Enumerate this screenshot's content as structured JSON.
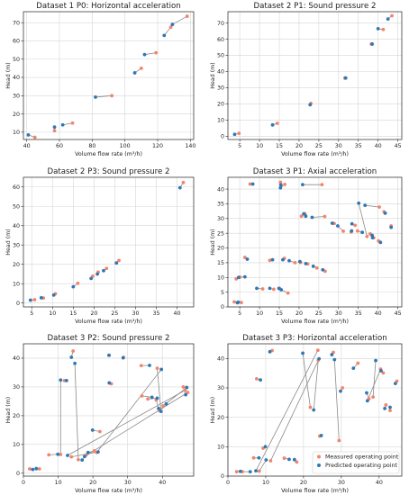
{
  "figure": {
    "colors": {
      "measured": "#f2856b",
      "predicted": "#2f78b4",
      "connector": "#8a8a8a",
      "grid": "#d6d6d6",
      "axis": "#222222"
    },
    "legend": {
      "placement": "bottom-right",
      "panel": 5,
      "items": [
        "Measured operating point",
        "Predicted operating point"
      ]
    }
  },
  "chart_data": [
    {
      "type": "scatter",
      "title": "Dataset 1 P0: Horizontal acceleration",
      "xlabel": "Volume flow rate (m³/h)",
      "ylabel": "Head (m)",
      "xlim": [
        38,
        142
      ],
      "ylim": [
        6,
        76
      ],
      "xticks": [
        40,
        60,
        80,
        100,
        120,
        140
      ],
      "yticks": [
        10,
        20,
        30,
        40,
        50,
        60,
        70
      ],
      "grid": true,
      "series": [
        {
          "name": "Measured operating point",
          "points": [
            [
              45,
              7.2
            ],
            [
              57,
              10.8
            ],
            [
              68,
              15
            ],
            [
              92,
              30
            ],
            [
              110,
              45
            ],
            [
              119,
              53.5
            ],
            [
              128,
              67.5
            ],
            [
              138,
              73.5
            ]
          ]
        },
        {
          "name": "Predicted operating point",
          "points": [
            [
              41,
              8.5
            ],
            [
              57,
              12.8
            ],
            [
              62,
              14
            ],
            [
              82,
              29.2
            ],
            [
              106,
              42.5
            ],
            [
              112,
              52.5
            ],
            [
              124,
              63
            ],
            [
              129,
              69
            ]
          ]
        }
      ]
    },
    {
      "type": "scatter",
      "title": "Dataset 2 P1: Sound pressure 2",
      "xlabel": "Volume flow rate (m³/h)",
      "ylabel": "Head (m)",
      "xlim": [
        2,
        46
      ],
      "ylim": [
        -2,
        77
      ],
      "xticks": [
        5,
        10,
        15,
        20,
        25,
        30,
        35,
        40,
        45
      ],
      "yticks": [
        0,
        10,
        20,
        30,
        40,
        50,
        60,
        70
      ],
      "grid": true,
      "series": [
        {
          "name": "Measured operating point",
          "points": [
            [
              4.8,
              1.8
            ],
            [
              14.5,
              8
            ],
            [
              23,
              20.3
            ],
            [
              31.6,
              36
            ],
            [
              38.3,
              57
            ],
            [
              41.3,
              66
            ],
            [
              43.5,
              74.5
            ]
          ]
        },
        {
          "name": "Predicted operating point",
          "points": [
            [
              3.7,
              1.2
            ],
            [
              13.3,
              7
            ],
            [
              22.8,
              19.5
            ],
            [
              31.8,
              36
            ],
            [
              38.5,
              57
            ],
            [
              40,
              66.5
            ],
            [
              42.5,
              72.5
            ]
          ]
        }
      ]
    },
    {
      "type": "scatter",
      "title": "Dataset 2 P3: Sound pressure 2",
      "xlabel": "Volume flow rate (m³/h)",
      "ylabel": "Head (m)",
      "xlim": [
        3,
        44
      ],
      "ylim": [
        -2,
        65
      ],
      "xticks": [
        5,
        10,
        15,
        20,
        25,
        30,
        35,
        40
      ],
      "yticks": [
        0,
        10,
        20,
        30,
        40,
        50,
        60
      ],
      "grid": true,
      "series": [
        {
          "name": "Measured operating point",
          "points": [
            [
              5.7,
              1.7
            ],
            [
              7.8,
              2.6
            ],
            [
              10.7,
              4.8
            ],
            [
              16.1,
              10.2
            ],
            [
              19.7,
              13.9
            ],
            [
              21,
              16
            ],
            [
              23,
              17.9
            ],
            [
              26,
              22
            ],
            [
              41.5,
              62.3
            ]
          ]
        },
        {
          "name": "Predicted operating point",
          "points": [
            [
              4.7,
              1.5
            ],
            [
              7.3,
              2.7
            ],
            [
              10.3,
              4.1
            ],
            [
              15,
              8.4
            ],
            [
              19.3,
              12.7
            ],
            [
              20.8,
              15
            ],
            [
              22.3,
              16.7
            ],
            [
              25.4,
              20.7
            ],
            [
              40.7,
              59.6
            ]
          ]
        }
      ]
    },
    {
      "type": "scatter",
      "title": "Dataset 3 P1: Axial acceleration",
      "xlabel": "Volume flow rate (m³/h)",
      "ylabel": "Head (m)",
      "xlim": [
        2,
        46
      ],
      "ylim": [
        0,
        44
      ],
      "xticks": [
        5,
        10,
        15,
        20,
        25,
        30,
        35,
        40,
        45
      ],
      "yticks": [
        0,
        5,
        10,
        15,
        20,
        25,
        30,
        35,
        40
      ],
      "grid": true,
      "series": [
        {
          "name": "Measured operating point",
          "points": [
            [
              3.6,
              1.7
            ],
            [
              5.4,
              1.5
            ],
            [
              4.1,
              9.5
            ],
            [
              5,
              10.1
            ],
            [
              6.3,
              16.8
            ],
            [
              7.6,
              41.7
            ],
            [
              15.3,
              42.3
            ],
            [
              15.1,
              6.2
            ],
            [
              17.2,
              4.7
            ],
            [
              13.6,
              6
            ],
            [
              12.6,
              15.8
            ],
            [
              16.3,
              16.5
            ],
            [
              19,
              15
            ],
            [
              20.4,
              15.1
            ],
            [
              22.2,
              14.6
            ],
            [
              24.5,
              13.2
            ],
            [
              26.6,
              12.1
            ],
            [
              20.6,
              30.8
            ],
            [
              25.8,
              41.5
            ],
            [
              26.5,
              30.7
            ],
            [
              28.9,
              28.3
            ],
            [
              31.2,
              25.7
            ],
            [
              33.2,
              25.4
            ],
            [
              34.2,
              27.7
            ],
            [
              37.2,
              23.9
            ],
            [
              38,
              24.8
            ],
            [
              38.9,
              23.5
            ],
            [
              40.3,
              33.9
            ],
            [
              41.5,
              32.3
            ],
            [
              43.3,
              27.5
            ],
            [
              10.8,
              6.1
            ],
            [
              16.4,
              41.6
            ],
            [
              21.5,
              31.6
            ],
            [
              34.8,
              25.8
            ],
            [
              40.1,
              22.4
            ]
          ]
        },
        {
          "name": "Predicted operating point",
          "points": [
            [
              4.6,
              1.6
            ],
            [
              4.4,
              1.4
            ],
            [
              4.7,
              10
            ],
            [
              6.3,
              10.2
            ],
            [
              6.9,
              16.2
            ],
            [
              8.3,
              41.7
            ],
            [
              15.4,
              41.4
            ],
            [
              14.9,
              6.3
            ],
            [
              15.5,
              5.8
            ],
            [
              12.6,
              6.3
            ],
            [
              13.3,
              16
            ],
            [
              15.9,
              16
            ],
            [
              17.5,
              15.7
            ],
            [
              20.2,
              15.4
            ],
            [
              21.7,
              14.7
            ],
            [
              23.6,
              13.8
            ],
            [
              26,
              12.6
            ],
            [
              21.2,
              31.6
            ],
            [
              20.9,
              41.5
            ],
            [
              23.3,
              30.4
            ],
            [
              28.4,
              28.4
            ],
            [
              29.8,
              27.5
            ],
            [
              33.3,
              25.8
            ],
            [
              33.4,
              28.2
            ],
            [
              35.1,
              35.2
            ],
            [
              38.6,
              23.5
            ],
            [
              38.5,
              24.3
            ],
            [
              36.7,
              34.5
            ],
            [
              41.8,
              31.8
            ],
            [
              43.3,
              27
            ],
            [
              9.3,
              6.3
            ],
            [
              15.3,
              40.4
            ],
            [
              21.7,
              30.8
            ],
            [
              36,
              25.3
            ],
            [
              40.6,
              21.9
            ]
          ]
        }
      ]
    },
    {
      "type": "scatter",
      "title": "Dataset 3 P2: Sound pressure 2",
      "xlabel": "Volume flow rate (m³/h)",
      "ylabel": "Head (m)",
      "xlim": [
        0,
        49
      ],
      "ylim": [
        -1,
        45
      ],
      "xticks": [
        0,
        10,
        20,
        30,
        40
      ],
      "yticks": [
        0,
        10,
        20,
        30,
        40
      ],
      "grid": true,
      "series": [
        {
          "name": "Measured operating point",
          "points": [
            [
              1.8,
              1.5
            ],
            [
              4.6,
              1.5
            ],
            [
              7.3,
              6.4
            ],
            [
              10.7,
              6.5
            ],
            [
              11.8,
              32.2
            ],
            [
              14.3,
              42.5
            ],
            [
              15.8,
              4.7
            ],
            [
              18.1,
              6.4
            ],
            [
              20.4,
              7.8
            ],
            [
              22,
              14.5
            ],
            [
              24.7,
              41
            ],
            [
              25.3,
              31.1
            ],
            [
              28.8,
              40.3
            ],
            [
              33.9,
              37.4
            ],
            [
              34.1,
              26.9
            ],
            [
              35.8,
              25.8
            ],
            [
              38.2,
              25.5
            ],
            [
              38.5,
              36.5
            ],
            [
              39.1,
              21.8
            ],
            [
              40.2,
              23.4
            ],
            [
              46,
              30
            ],
            [
              46.5,
              28.8
            ],
            [
              47.3,
              28.1
            ],
            [
              13.8,
              5.7
            ],
            [
              21.1,
              7.2
            ]
          ]
        },
        {
          "name": "Predicted operating point",
          "points": [
            [
              2.7,
              1.3
            ],
            [
              3.7,
              1.6
            ],
            [
              9.9,
              6.6
            ],
            [
              10.7,
              32.4
            ],
            [
              12.4,
              32.2
            ],
            [
              13.8,
              40.3
            ],
            [
              14.8,
              38.2
            ],
            [
              16.9,
              4.6
            ],
            [
              18.6,
              7.2
            ],
            [
              19.9,
              15
            ],
            [
              24.6,
              41
            ],
            [
              24.7,
              31.4
            ],
            [
              28.7,
              40.1
            ],
            [
              36.3,
              37.5
            ],
            [
              37,
              26.4
            ],
            [
              38.5,
              26.1
            ],
            [
              38.9,
              22.5
            ],
            [
              39.6,
              21.5
            ],
            [
              41.1,
              24.1
            ],
            [
              47,
              29.8
            ],
            [
              46.7,
              27.3
            ],
            [
              12.7,
              6.2
            ],
            [
              17.6,
              5.8
            ],
            [
              21.5,
              7.4
            ],
            [
              39.7,
              36.1
            ]
          ]
        }
      ]
    },
    {
      "type": "scatter",
      "title": "Dataset 3 P3: Horizontal acceleration",
      "xlabel": "Volume flow rate (m³/h)",
      "ylabel": "Head (m)",
      "xlim": [
        0,
        46
      ],
      "ylim": [
        0,
        45
      ],
      "xticks": [
        0,
        10,
        20,
        30,
        40
      ],
      "yticks": [
        0,
        10,
        20,
        30,
        40
      ],
      "grid": true,
      "series": [
        {
          "name": "Measured operating point",
          "points": [
            [
              2.3,
              1.5
            ],
            [
              3.8,
              1.5
            ],
            [
              6.8,
              6.2
            ],
            [
              7.6,
              33.1
            ],
            [
              9.3,
              9.5
            ],
            [
              11.7,
              42.7
            ],
            [
              14.9,
              6.1
            ],
            [
              18.2,
              4.8
            ],
            [
              21.8,
              23.4
            ],
            [
              23.9,
              39.4
            ],
            [
              24.3,
              13.6
            ],
            [
              27.9,
              42.1
            ],
            [
              29.4,
              12.1
            ],
            [
              30.3,
              30
            ],
            [
              34.4,
              38.4
            ],
            [
              37.3,
              26.3
            ],
            [
              38.4,
              26.9
            ],
            [
              41.1,
              35.1
            ],
            [
              41.8,
              24.2
            ],
            [
              42.9,
              22.3
            ],
            [
              44.7,
              32.3
            ],
            [
              23.8,
              42.8
            ],
            [
              8.3,
              1.7
            ],
            [
              11.3,
              5.2
            ],
            [
              40.4,
              36.4
            ]
          ]
        },
        {
          "name": "Predicted operating point",
          "points": [
            [
              3.3,
              1.6
            ],
            [
              5.9,
              1.5
            ],
            [
              8.2,
              6.2
            ],
            [
              8.6,
              32.7
            ],
            [
              9.9,
              10
            ],
            [
              11.1,
              42.3
            ],
            [
              16.2,
              5.7
            ],
            [
              17.6,
              5.6
            ],
            [
              19.8,
              41.8
            ],
            [
              22.7,
              22.5
            ],
            [
              24.7,
              13.8
            ],
            [
              27.5,
              41.3
            ],
            [
              28.2,
              39.6
            ],
            [
              29.8,
              28.9
            ],
            [
              33.2,
              36.7
            ],
            [
              36.7,
              28.3
            ],
            [
              39.1,
              39.3
            ],
            [
              40.5,
              35.8
            ],
            [
              41.5,
              23
            ],
            [
              42.9,
              23.4
            ],
            [
              44.3,
              31.5
            ],
            [
              7.4,
              1.8
            ],
            [
              10.1,
              5.5
            ],
            [
              24.1,
              39.9
            ],
            [
              36.9,
              25.6
            ]
          ]
        }
      ]
    }
  ]
}
